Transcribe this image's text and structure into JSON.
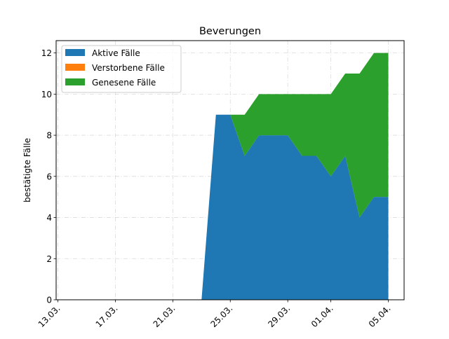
{
  "chart_data": {
    "type": "area",
    "title": "Beverungen",
    "xlabel": "",
    "ylabel": "bestätigte Fälle",
    "x_tick_labels": [
      "13.03.",
      "17.03.",
      "21.03.",
      "25.03.",
      "29.03.",
      "01.04.",
      "05.04."
    ],
    "x_tick_dates": [
      "2020-03-13",
      "2020-03-17",
      "2020-03-21",
      "2020-03-25",
      "2020-03-29",
      "2020-04-01",
      "2020-04-05"
    ],
    "x": [
      "2020-03-13",
      "2020-03-14",
      "2020-03-15",
      "2020-03-16",
      "2020-03-17",
      "2020-03-18",
      "2020-03-19",
      "2020-03-20",
      "2020-03-21",
      "2020-03-22",
      "2020-03-23",
      "2020-03-24",
      "2020-03-25",
      "2020-03-26",
      "2020-03-27",
      "2020-03-28",
      "2020-03-29",
      "2020-03-30",
      "2020-03-31",
      "2020-04-01",
      "2020-04-02",
      "2020-04-03",
      "2020-04-04",
      "2020-04-05"
    ],
    "ylim": [
      0,
      12.6
    ],
    "y_ticks": [
      0,
      2,
      4,
      6,
      8,
      10,
      12
    ],
    "grid": true,
    "legend_position": "top-left",
    "series": [
      {
        "name": "Aktive Fälle",
        "color": "#1f77b4",
        "values": [
          0,
          0,
          0,
          0,
          0,
          0,
          0,
          0,
          0,
          0,
          0,
          9,
          9,
          7,
          8,
          8,
          8,
          7,
          7,
          6,
          7,
          4,
          5,
          5
        ]
      },
      {
        "name": "Verstorbene Fälle",
        "color": "#ff7f0e",
        "values": [
          0,
          0,
          0,
          0,
          0,
          0,
          0,
          0,
          0,
          0,
          0,
          0,
          0,
          0,
          0,
          0,
          0,
          0,
          0,
          0,
          0,
          0,
          0,
          0
        ]
      },
      {
        "name": "Genesene Fälle",
        "color": "#2ca02c",
        "values": [
          0,
          0,
          0,
          0,
          0,
          0,
          0,
          0,
          0,
          0,
          0,
          0,
          0,
          2,
          2,
          2,
          2,
          3,
          3,
          4,
          4,
          7,
          7,
          7
        ]
      }
    ]
  }
}
